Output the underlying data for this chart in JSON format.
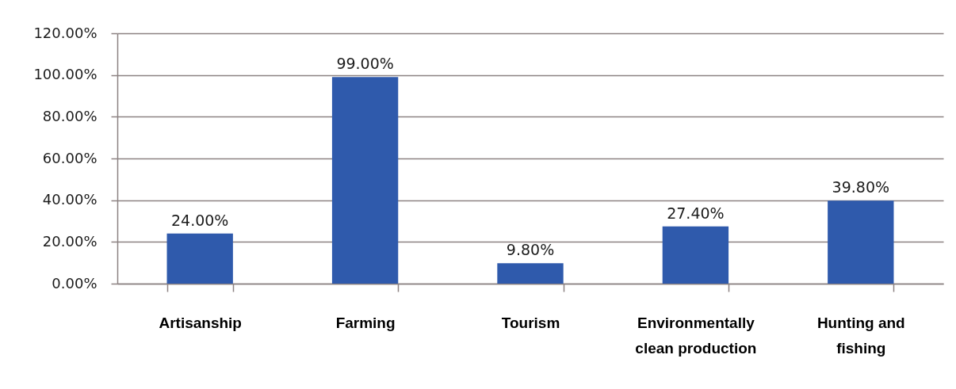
{
  "chart_data": {
    "type": "bar",
    "categories": [
      "Artisanship",
      "Farming",
      "Tourism",
      "Environmentally clean production",
      "Hunting and fishing"
    ],
    "values": [
      24,
      99,
      9.8,
      27.4,
      39.8
    ],
    "color": "#2f5aac",
    "value_labels": [
      "24.00%",
      "99.00%",
      "9.80%",
      "27.40%",
      "39.80%"
    ],
    "ylim": [
      0,
      120
    ],
    "yticks": [
      {
        "value": 0,
        "label": "0.00%"
      },
      {
        "value": 20,
        "label": "20.00%"
      },
      {
        "value": 40,
        "label": "40.00%"
      },
      {
        "value": 60,
        "label": "60.00%"
      },
      {
        "value": 80,
        "label": "80.00%"
      },
      {
        "value": 100,
        "label": "100.00%"
      },
      {
        "value": 120,
        "label": "120.00%"
      }
    ],
    "grid": "y"
  }
}
